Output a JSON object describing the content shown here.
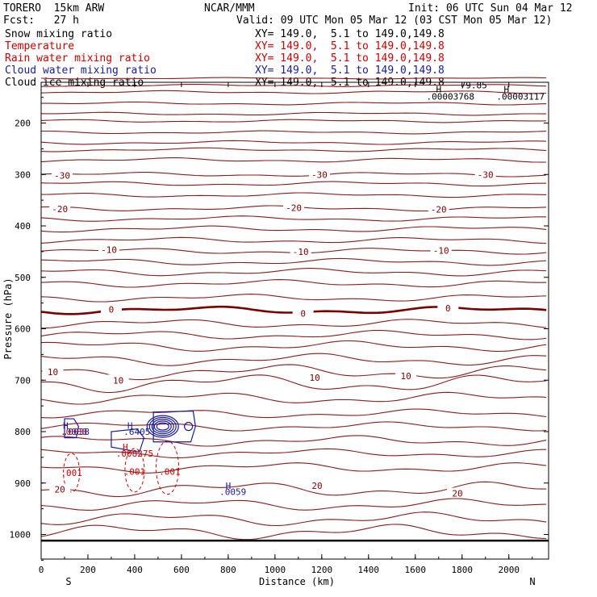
{
  "header": {
    "model": "TORERO  15km ARW",
    "org": "NCAR/MMM",
    "init": "Init: 06 UTC Sun 04 Mar 12",
    "fcst": "Fcst:   27 h",
    "valid": "Valid: 09 UTC Mon 05 Mar 12 (03 CST Mon 05 Mar 12)"
  },
  "legend": [
    {
      "label": "Snow mixing ratio",
      "xy": "XY= 149.0,  5.1 to 149.0,149.8",
      "color": "#000000"
    },
    {
      "label": "Temperature",
      "xy": "XY= 149.0,  5.1 to 149.0,149.8",
      "color": "#cc0000"
    },
    {
      "label": "Rain water mixing ratio",
      "xy": "XY= 149.0,  5.1 to 149.0,149.8",
      "color": "#cc0000"
    },
    {
      "label": "Cloud water mixing ratio",
      "xy": "XY= 149.0,  5.1 to 149.0,149.8",
      "color": "#1a1aa0"
    },
    {
      "label": "Cloud ice mixing ratio",
      "xy": "XY= 149.0,  5.1 to 149.0,149.8",
      "color": "#000000"
    }
  ],
  "chart_data": {
    "type": "contour",
    "xlabel": "Distance (km)",
    "ylabel": "Pressure (hPa)",
    "xlim": [
      0,
      2170
    ],
    "ylim": [
      1050,
      100
    ],
    "x_ticks": [
      0,
      200,
      400,
      600,
      800,
      1000,
      1200,
      1400,
      1600,
      1800,
      2000
    ],
    "y_ticks": [
      200,
      300,
      400,
      500,
      600,
      700,
      800,
      900,
      1000
    ],
    "x_end_labels": {
      "left": "S",
      "right": "N"
    },
    "temperature_contour_labels": [
      {
        "text": "-30",
        "x": 90,
        "p": 302
      },
      {
        "text": "-30",
        "x": 1190,
        "p": 300
      },
      {
        "text": "-30",
        "x": 1900,
        "p": 300
      },
      {
        "text": "-20",
        "x": 80,
        "p": 367
      },
      {
        "text": "-20",
        "x": 1080,
        "p": 365
      },
      {
        "text": "-20",
        "x": 1700,
        "p": 368
      },
      {
        "text": "-10",
        "x": 290,
        "p": 446
      },
      {
        "text": "-10",
        "x": 1110,
        "p": 450
      },
      {
        "text": "-10",
        "x": 1710,
        "p": 448
      },
      {
        "text": "0",
        "x": 300,
        "p": 562
      },
      {
        "text": "0",
        "x": 1120,
        "p": 570
      },
      {
        "text": "0",
        "x": 1740,
        "p": 560
      },
      {
        "text": "10",
        "x": 50,
        "p": 684
      },
      {
        "text": "10",
        "x": 330,
        "p": 700
      },
      {
        "text": "10",
        "x": 1170,
        "p": 695
      },
      {
        "text": "10",
        "x": 1560,
        "p": 692
      },
      {
        "text": "20",
        "x": 80,
        "p": 912
      },
      {
        "text": "20",
        "x": 1180,
        "p": 905
      },
      {
        "text": "20",
        "x": 1780,
        "p": 920
      }
    ],
    "top_labels": [
      {
        "text": "79.85",
        "x": 1850,
        "p": 126
      },
      {
        "text": "H",
        "x": 1700,
        "p": 134
      },
      {
        "text": "H",
        "x": 1990,
        "p": 134
      },
      {
        "text": ".00003768",
        "x": 1750,
        "p": 148
      },
      {
        "text": ".00003117",
        "x": 2050,
        "p": 148
      }
    ],
    "rain_labels": [
      {
        "text": "H",
        "x": 105,
        "p": 788,
        "color": "#cc0000"
      },
      {
        "text": ".0088",
        "x": 140,
        "p": 800,
        "color": "#cc0000"
      },
      {
        "text": "H",
        "x": 360,
        "p": 830,
        "color": "#cc0000"
      },
      {
        "text": ".008275",
        "x": 400,
        "p": 842,
        "color": "#cc0000"
      },
      {
        "text": ".001",
        "x": 130,
        "p": 880,
        "color": "#cc0000"
      },
      {
        "text": ".001",
        "x": 400,
        "p": 878,
        "color": "#cc0000"
      },
      {
        "text": ".001",
        "x": 550,
        "p": 878,
        "color": "#cc0000"
      }
    ],
    "cloud_water_labels": [
      {
        "text": "H",
        "x": 105,
        "p": 788,
        "color": "#1a1aa0"
      },
      {
        "text": ".0038",
        "x": 150,
        "p": 800,
        "color": "#1a1aa0"
      },
      {
        "text": "H",
        "x": 380,
        "p": 788,
        "color": "#1a1aa0"
      },
      {
        "text": ".6405",
        "x": 410,
        "p": 800,
        "color": "#1a1aa0"
      },
      {
        "text": "H",
        "x": 800,
        "p": 905,
        "color": "#1a1aa0"
      },
      {
        "text": ".0059",
        "x": 820,
        "p": 917,
        "color": "#1a1aa0"
      }
    ]
  }
}
